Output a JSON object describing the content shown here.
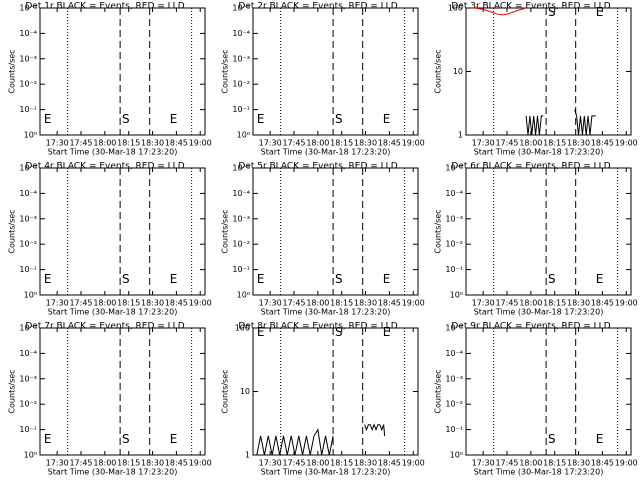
{
  "chart_data": [
    {
      "type": "line",
      "title": "Det 1r BLACK = Events, RED = LLD",
      "x_label": "Start Time (30-Mar-18 17:23:20)",
      "y_label": "Counts/sec",
      "log_y": true,
      "xlim": [
        17.32,
        19.05
      ],
      "xticks": [
        {
          "value": 17.5,
          "label": "17:30"
        },
        {
          "value": 17.75,
          "label": "17:45"
        },
        {
          "value": 18,
          "label": "18:00"
        },
        {
          "value": 18.25,
          "label": "18:15"
        },
        {
          "value": 18.5,
          "label": "18:30"
        },
        {
          "value": 18.75,
          "label": "18:45"
        },
        {
          "value": 19,
          "label": "19:00"
        }
      ],
      "ylim": [
        1,
        1e-05
      ],
      "yticks": [
        {
          "value": 1,
          "label": "10⁰"
        },
        {
          "value": 0.1,
          "label": "10⁻¹"
        },
        {
          "value": 0.01,
          "label": "10⁻²"
        },
        {
          "value": 0.001,
          "label": "10⁻³"
        },
        {
          "value": 0.0001,
          "label": "10⁻⁴"
        },
        {
          "value": 1e-05,
          "label": "10⁻⁵"
        }
      ],
      "vlines": [
        {
          "x": 17.61,
          "style": "dotted"
        },
        {
          "x": 18.16,
          "style": "dashed"
        },
        {
          "x": 18.47,
          "style": "dashed"
        },
        {
          "x": 18.91,
          "style": "dotted"
        }
      ],
      "annotations": [
        {
          "text": "E",
          "x": 17.36,
          "y": 0.25
        },
        {
          "text": "S",
          "x": 18.18,
          "y": 0.25
        },
        {
          "text": "E",
          "x": 18.68,
          "y": 0.25
        }
      ],
      "series": []
    },
    {
      "type": "line",
      "title": "Det 2r BLACK = Events, RED = LLD",
      "x_label": "Start Time (30-Mar-18 17:23:20)",
      "y_label": "Counts/sec",
      "log_y": true,
      "xlim": [
        17.32,
        19.05
      ],
      "xticks": [
        {
          "value": 17.5,
          "label": "17:30"
        },
        {
          "value": 17.75,
          "label": "17:45"
        },
        {
          "value": 18,
          "label": "18:00"
        },
        {
          "value": 18.25,
          "label": "18:15"
        },
        {
          "value": 18.5,
          "label": "18:30"
        },
        {
          "value": 18.75,
          "label": "18:45"
        },
        {
          "value": 19,
          "label": "19:00"
        }
      ],
      "ylim": [
        1,
        1e-05
      ],
      "yticks": [
        {
          "value": 1,
          "label": "10⁰"
        },
        {
          "value": 0.1,
          "label": "10⁻¹"
        },
        {
          "value": 0.01,
          "label": "10⁻²"
        },
        {
          "value": 0.001,
          "label": "10⁻³"
        },
        {
          "value": 0.0001,
          "label": "10⁻⁴"
        },
        {
          "value": 1e-05,
          "label": "10⁻⁵"
        }
      ],
      "vlines": [
        {
          "x": 17.61,
          "style": "dotted"
        },
        {
          "x": 18.16,
          "style": "dashed"
        },
        {
          "x": 18.47,
          "style": "dashed"
        },
        {
          "x": 18.91,
          "style": "dotted"
        }
      ],
      "annotations": [
        {
          "text": "E",
          "x": 17.36,
          "y": 0.25
        },
        {
          "text": "S",
          "x": 18.18,
          "y": 0.25
        },
        {
          "text": "E",
          "x": 18.68,
          "y": 0.25
        }
      ],
      "series": []
    },
    {
      "type": "line",
      "title": "Det 3r BLACK = Events, RED = LLD",
      "x_label": "Start Time (30-Mar-18 17:23:20)",
      "y_label": "Counts/sec",
      "log_y": true,
      "xlim": [
        17.32,
        19.05
      ],
      "xticks": [
        {
          "value": 17.5,
          "label": "17:30"
        },
        {
          "value": 17.75,
          "label": "17:45"
        },
        {
          "value": 18,
          "label": "18:00"
        },
        {
          "value": 18.25,
          "label": "18:15"
        },
        {
          "value": 18.5,
          "label": "18:30"
        },
        {
          "value": 18.75,
          "label": "18:45"
        },
        {
          "value": 19,
          "label": "19:00"
        }
      ],
      "ylim": [
        1,
        100
      ],
      "yticks": [
        1,
        10,
        100
      ],
      "vlines": [
        {
          "x": 17.61,
          "style": "dotted"
        },
        {
          "x": 18.16,
          "style": "dashed"
        },
        {
          "x": 18.47,
          "style": "dashed"
        },
        {
          "x": 18.91,
          "style": "dotted"
        }
      ],
      "annotations": [
        {
          "text": "S",
          "x": 18.18,
          "y": 85
        },
        {
          "text": "E",
          "x": 18.68,
          "y": 85
        }
      ],
      "series": [
        {
          "color": "#000000",
          "x": [
            17.95,
            17.97,
            17.99,
            18.01,
            18.03,
            18.05,
            18.07,
            18.09,
            18.11,
            18.13,
            18.3,
            18.46,
            18.48,
            18.5,
            18.52,
            18.54,
            18.56,
            18.58,
            18.6,
            18.62,
            18.64,
            18.66,
            18.68
          ],
          "values": [
            2,
            1,
            2,
            1,
            2,
            1,
            2,
            1,
            2,
            2,
            null,
            2.5,
            2,
            1,
            2,
            1,
            2,
            1,
            2,
            1,
            2,
            2,
            2
          ]
        },
        {
          "color": "#ff0000",
          "x": [
            17.4,
            17.45,
            17.5,
            17.55,
            17.6,
            17.65,
            17.7,
            17.75,
            17.8,
            17.85,
            17.9,
            17.95
          ],
          "values": [
            100,
            98,
            95,
            90,
            85,
            80,
            78,
            80,
            85,
            90,
            95,
            100
          ]
        }
      ]
    },
    {
      "type": "line",
      "title": "Det 4r BLACK = Events, RED = LLD",
      "x_label": "Start Time (30-Mar-18 17:23:20)",
      "y_label": "Counts/sec",
      "log_y": true,
      "xlim": [
        17.32,
        19.05
      ],
      "xticks": [
        {
          "value": 17.5,
          "label": "17:30"
        },
        {
          "value": 17.75,
          "label": "17:45"
        },
        {
          "value": 18,
          "label": "18:00"
        },
        {
          "value": 18.25,
          "label": "18:15"
        },
        {
          "value": 18.5,
          "label": "18:30"
        },
        {
          "value": 18.75,
          "label": "18:45"
        },
        {
          "value": 19,
          "label": "19:00"
        }
      ],
      "ylim": [
        1,
        1e-05
      ],
      "yticks": [
        {
          "value": 1,
          "label": "10⁰"
        },
        {
          "value": 0.1,
          "label": "10⁻¹"
        },
        {
          "value": 0.01,
          "label": "10⁻²"
        },
        {
          "value": 0.001,
          "label": "10⁻³"
        },
        {
          "value": 0.0001,
          "label": "10⁻⁴"
        },
        {
          "value": 1e-05,
          "label": "10⁻⁵"
        }
      ],
      "vlines": [
        {
          "x": 17.61,
          "style": "dotted"
        },
        {
          "x": 18.16,
          "style": "dashed"
        },
        {
          "x": 18.47,
          "style": "dashed"
        },
        {
          "x": 18.91,
          "style": "dotted"
        }
      ],
      "annotations": [
        {
          "text": "E",
          "x": 17.36,
          "y": 0.25
        },
        {
          "text": "S",
          "x": 18.18,
          "y": 0.25
        },
        {
          "text": "E",
          "x": 18.68,
          "y": 0.25
        }
      ],
      "series": []
    },
    {
      "type": "line",
      "title": "Det 5r BLACK = Events, RED = LLD",
      "x_label": "Start Time (30-Mar-18 17:23:20)",
      "y_label": "Counts/sec",
      "log_y": true,
      "xlim": [
        17.32,
        19.05
      ],
      "xticks": [
        {
          "value": 17.5,
          "label": "17:30"
        },
        {
          "value": 17.75,
          "label": "17:45"
        },
        {
          "value": 18,
          "label": "18:00"
        },
        {
          "value": 18.25,
          "label": "18:15"
        },
        {
          "value": 18.5,
          "label": "18:30"
        },
        {
          "value": 18.75,
          "label": "18:45"
        },
        {
          "value": 19,
          "label": "19:00"
        }
      ],
      "ylim": [
        1,
        1e-05
      ],
      "yticks": [
        {
          "value": 1,
          "label": "10⁰"
        },
        {
          "value": 0.1,
          "label": "10⁻¹"
        },
        {
          "value": 0.01,
          "label": "10⁻²"
        },
        {
          "value": 0.001,
          "label": "10⁻³"
        },
        {
          "value": 0.0001,
          "label": "10⁻⁴"
        },
        {
          "value": 1e-05,
          "label": "10⁻⁵"
        }
      ],
      "vlines": [
        {
          "x": 17.61,
          "style": "dotted"
        },
        {
          "x": 18.16,
          "style": "dashed"
        },
        {
          "x": 18.47,
          "style": "dashed"
        },
        {
          "x": 18.91,
          "style": "dotted"
        }
      ],
      "annotations": [
        {
          "text": "E",
          "x": 17.36,
          "y": 0.25
        },
        {
          "text": "S",
          "x": 18.18,
          "y": 0.25
        },
        {
          "text": "E",
          "x": 18.68,
          "y": 0.25
        }
      ],
      "series": []
    },
    {
      "type": "line",
      "title": "Det 6r BLACK = Events, RED = LLD",
      "x_label": "Start Time (30-Mar-18 17:23:20)",
      "y_label": "Counts/sec",
      "log_y": true,
      "xlim": [
        17.32,
        19.05
      ],
      "xticks": [
        {
          "value": 17.5,
          "label": "17:30"
        },
        {
          "value": 17.75,
          "label": "17:45"
        },
        {
          "value": 18,
          "label": "18:00"
        },
        {
          "value": 18.25,
          "label": "18:15"
        },
        {
          "value": 18.5,
          "label": "18:30"
        },
        {
          "value": 18.75,
          "label": "18:45"
        },
        {
          "value": 19,
          "label": "19:00"
        }
      ],
      "ylim": [
        1,
        1e-05
      ],
      "yticks": [
        {
          "value": 1,
          "label": "10⁰"
        },
        {
          "value": 0.1,
          "label": "10⁻¹"
        },
        {
          "value": 0.01,
          "label": "10⁻²"
        },
        {
          "value": 0.001,
          "label": "10⁻³"
        },
        {
          "value": 0.0001,
          "label": "10⁻⁴"
        },
        {
          "value": 1e-05,
          "label": "10⁻⁵"
        }
      ],
      "vlines": [
        {
          "x": 17.61,
          "style": "dotted"
        },
        {
          "x": 18.16,
          "style": "dashed"
        },
        {
          "x": 18.47,
          "style": "dashed"
        },
        {
          "x": 18.91,
          "style": "dotted"
        }
      ],
      "annotations": [
        {
          "text": "S",
          "x": 18.18,
          "y": 0.25
        },
        {
          "text": "E",
          "x": 18.68,
          "y": 0.25
        }
      ],
      "series": []
    },
    {
      "type": "line",
      "title": "Det 7r BLACK = Events, RED = LLD",
      "x_label": "Start Time (30-Mar-18 17:23:20)",
      "y_label": "Counts/sec",
      "log_y": true,
      "xlim": [
        17.32,
        19.05
      ],
      "xticks": [
        {
          "value": 17.5,
          "label": "17:30"
        },
        {
          "value": 17.75,
          "label": "17:45"
        },
        {
          "value": 18,
          "label": "18:00"
        },
        {
          "value": 18.25,
          "label": "18:15"
        },
        {
          "value": 18.5,
          "label": "18:30"
        },
        {
          "value": 18.75,
          "label": "18:45"
        },
        {
          "value": 19,
          "label": "19:00"
        }
      ],
      "ylim": [
        1,
        1e-05
      ],
      "yticks": [
        {
          "value": 1,
          "label": "10⁰"
        },
        {
          "value": 0.1,
          "label": "10⁻¹"
        },
        {
          "value": 0.01,
          "label": "10⁻²"
        },
        {
          "value": 0.001,
          "label": "10⁻³"
        },
        {
          "value": 0.0001,
          "label": "10⁻⁴"
        },
        {
          "value": 1e-05,
          "label": "10⁻⁵"
        }
      ],
      "vlines": [
        {
          "x": 17.61,
          "style": "dotted"
        },
        {
          "x": 18.16,
          "style": "dashed"
        },
        {
          "x": 18.47,
          "style": "dashed"
        },
        {
          "x": 18.91,
          "style": "dotted"
        }
      ],
      "annotations": [
        {
          "text": "E",
          "x": 17.36,
          "y": 0.25
        },
        {
          "text": "S",
          "x": 18.18,
          "y": 0.25
        },
        {
          "text": "E",
          "x": 18.68,
          "y": 0.25
        }
      ],
      "series": []
    },
    {
      "type": "line",
      "title": "Det 8r BLACK = Events, RED = LLD",
      "x_label": "Start Time (30-Mar-18 17:23:20)",
      "y_label": "Counts/sec",
      "log_y": true,
      "xlim": [
        17.32,
        19.05
      ],
      "xticks": [
        {
          "value": 17.5,
          "label": "17:30"
        },
        {
          "value": 17.75,
          "label": "17:45"
        },
        {
          "value": 18,
          "label": "18:00"
        },
        {
          "value": 18.25,
          "label": "18:15"
        },
        {
          "value": 18.5,
          "label": "18:30"
        },
        {
          "value": 18.75,
          "label": "18:45"
        },
        {
          "value": 19,
          "label": "19:00"
        }
      ],
      "ylim": [
        1,
        100
      ],
      "yticks": [
        1,
        10,
        100
      ],
      "vlines": [
        {
          "x": 17.61,
          "style": "dotted"
        },
        {
          "x": 18.16,
          "style": "dashed"
        },
        {
          "x": 18.47,
          "style": "dashed"
        },
        {
          "x": 18.91,
          "style": "dotted"
        }
      ],
      "annotations": [
        {
          "text": "E",
          "x": 17.36,
          "y": 85
        },
        {
          "text": "S",
          "x": 18.18,
          "y": 85
        },
        {
          "text": "E",
          "x": 18.68,
          "y": 85
        }
      ],
      "series": [
        {
          "color": "#000000",
          "x": [
            17.36,
            17.4,
            17.44,
            17.48,
            17.52,
            17.56,
            17.6,
            17.64,
            17.68,
            17.72,
            17.76,
            17.8,
            17.84,
            17.88,
            17.92,
            17.96,
            18,
            18.04,
            18.08,
            18.12,
            18.16,
            18.3,
            18.49,
            18.51,
            18.53,
            18.55,
            18.57,
            18.59,
            18.61,
            18.63,
            18.65,
            18.67,
            18.69,
            18.7
          ],
          "values": [
            1,
            2,
            1,
            2,
            1,
            2,
            1,
            2,
            1,
            2,
            1,
            2,
            1,
            2,
            1,
            2,
            2.5,
            1,
            2,
            1,
            2,
            null,
            3,
            2.5,
            3,
            3,
            2.5,
            3,
            2.5,
            3,
            3,
            2.5,
            3,
            2
          ]
        }
      ]
    },
    {
      "type": "line",
      "title": "Det 9r BLACK = Events, RED = LLD",
      "x_label": "Start Time (30-Mar-18 17:23:20)",
      "y_label": "Counts/sec",
      "log_y": true,
      "xlim": [
        17.32,
        19.05
      ],
      "xticks": [
        {
          "value": 17.5,
          "label": "17:30"
        },
        {
          "value": 17.75,
          "label": "17:45"
        },
        {
          "value": 18,
          "label": "18:00"
        },
        {
          "value": 18.25,
          "label": "18:15"
        },
        {
          "value": 18.5,
          "label": "18:30"
        },
        {
          "value": 18.75,
          "label": "18:45"
        },
        {
          "value": 19,
          "label": "19:00"
        }
      ],
      "ylim": [
        1,
        1e-05
      ],
      "yticks": [
        {
          "value": 1,
          "label": "10⁰"
        },
        {
          "value": 0.1,
          "label": "10⁻¹"
        },
        {
          "value": 0.01,
          "label": "10⁻²"
        },
        {
          "value": 0.001,
          "label": "10⁻³"
        },
        {
          "value": 0.0001,
          "label": "10⁻⁴"
        },
        {
          "value": 1e-05,
          "label": "10⁻⁵"
        }
      ],
      "vlines": [
        {
          "x": 17.61,
          "style": "dotted"
        },
        {
          "x": 18.16,
          "style": "dashed"
        },
        {
          "x": 18.47,
          "style": "dashed"
        },
        {
          "x": 18.91,
          "style": "dotted"
        }
      ],
      "annotations": [
        {
          "text": "S",
          "x": 18.18,
          "y": 0.25
        },
        {
          "text": "E",
          "x": 18.68,
          "y": 0.25
        }
      ],
      "series": []
    }
  ]
}
